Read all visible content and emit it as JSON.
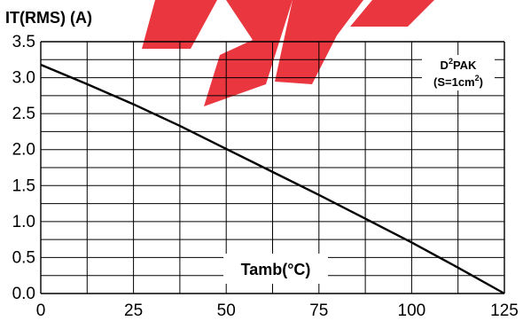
{
  "chart_data": {
    "type": "line",
    "ylabel": "IT(RMS) (A)",
    "xlabel": "Tamb(°C)",
    "xlim": [
      0,
      125
    ],
    "ylim": [
      0,
      3.5
    ],
    "x_ticks": [
      "0",
      "25",
      "50",
      "75",
      "100",
      "125"
    ],
    "y_ticks": [
      "0.0",
      "0.5",
      "1.0",
      "1.5",
      "2.0",
      "2.5",
      "3.0",
      "3.5"
    ],
    "grid": true,
    "series": [
      {
        "x": [
          0,
          12.5,
          25,
          37.5,
          50,
          62.5,
          75,
          87.5,
          100,
          112.5,
          125
        ],
        "y": [
          3.18,
          2.91,
          2.63,
          2.33,
          2.01,
          1.69,
          1.37,
          1.04,
          0.71,
          0.36,
          0.0
        ]
      }
    ],
    "annotation": {
      "line1_main": "PAK",
      "line1_prefix": "D",
      "line1_sup": "2",
      "line2_main": "(S=1cm",
      "line2_sup": "2",
      "line2_close": ")"
    },
    "watermark_color": "#e8202a"
  }
}
